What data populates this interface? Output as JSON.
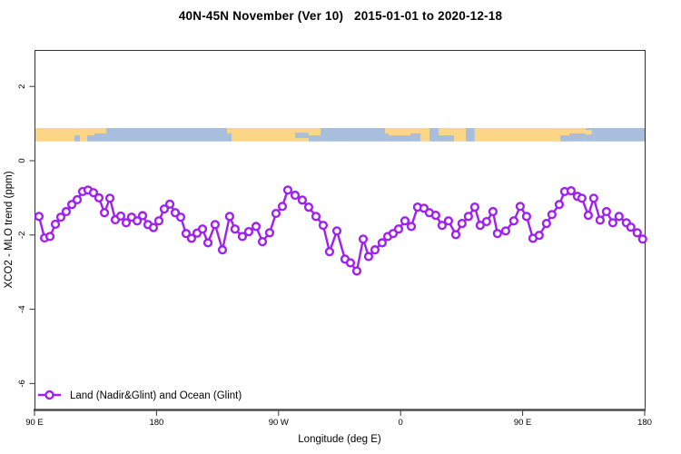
{
  "title": "40N-45N November (Ver 10)   2015-01-01 to 2020-12-18",
  "colors": {
    "series_purple": "#A020F0",
    "land_yellow": "#FBD687",
    "ocean_blue": "#A7BEDC",
    "box_border": "#333333",
    "axis_line": "#4d4d4d",
    "text": "#000000"
  },
  "chart_data": {
    "type": "line",
    "title": "40N-45N November (Ver 10)   2015-01-01 to 2020-12-18",
    "xlabel": "Longitude (deg E)",
    "ylabel": "XCO2 - MLO trend (ppm)",
    "xlim": [
      90,
      540.7
    ],
    "ylim": [
      -6.7,
      3.0
    ],
    "grid": false,
    "x_ticks": {
      "lons": [
        90,
        180,
        270,
        360,
        450,
        540
      ],
      "labels": [
        "90 E",
        "180",
        "90 W",
        "0",
        "90 E",
        "180"
      ]
    },
    "y_ticks": {
      "values": [
        2,
        0,
        -2,
        -4,
        -6
      ],
      "labels": [
        "2",
        "0",
        "-2",
        "-4",
        "-6"
      ]
    },
    "legend": {
      "position": "bottom-left",
      "entries": [
        {
          "label": "Land (Nadir&Glint) and Ocean (Glint)",
          "color": "#A020F0",
          "marker": "open-circle"
        }
      ]
    },
    "series": [
      {
        "name": "Land (Nadir&Glint) and Ocean (Glint)",
        "color": "#A020F0",
        "marker": "open-circle",
        "x": [
          93.3,
          97.4,
          101.4,
          105.4,
          109.4,
          113.4,
          117.5,
          121.5,
          125.5,
          129.5,
          133.5,
          137.5,
          141.6,
          145.6,
          149.6,
          153.6,
          157.6,
          161.6,
          165.7,
          169.7,
          173.7,
          177.7,
          181.7,
          185.7,
          189.8,
          193.8,
          197.8,
          201.8,
          205.8,
          209.9,
          213.9,
          217.9,
          223.2,
          228.6,
          233.9,
          237.9,
          243.3,
          248.0,
          253.4,
          258.1,
          263.4,
          268.1,
          272.8,
          276.8,
          282.2,
          287.5,
          292.2,
          297.6,
          302.9,
          307.6,
          313.0,
          319.0,
          323.0,
          327.7,
          332.4,
          336.4,
          341.1,
          346.4,
          350.5,
          354.5,
          358.5,
          363.2,
          367.9,
          372.5,
          377.2,
          381.2,
          385.9,
          390.6,
          395.3,
          400.7,
          405.3,
          410.0,
          414.7,
          418.7,
          423.4,
          428.1,
          431.4,
          437.5,
          443.5,
          448.2,
          452.9,
          457.6,
          462.2,
          467.6,
          471.6,
          477.0,
          481.0,
          485.7,
          490.4,
          493.7,
          498.4,
          502.4,
          507.1,
          511.8,
          516.5,
          521.1,
          526.5,
          529.8,
          534.5,
          538.5
        ],
        "y": [
          -1.5,
          -2.08,
          -2.04,
          -1.71,
          -1.52,
          -1.37,
          -1.18,
          -1.05,
          -0.83,
          -0.79,
          -0.86,
          -1.0,
          -1.4,
          -1.01,
          -1.59,
          -1.49,
          -1.67,
          -1.52,
          -1.62,
          -1.48,
          -1.72,
          -1.8,
          -1.62,
          -1.3,
          -1.17,
          -1.4,
          -1.52,
          -1.96,
          -2.09,
          -1.95,
          -1.84,
          -2.21,
          -1.72,
          -2.4,
          -1.5,
          -1.84,
          -2.04,
          -1.91,
          -1.77,
          -2.18,
          -1.94,
          -1.42,
          -1.23,
          -0.79,
          -0.93,
          -1.06,
          -1.25,
          -1.5,
          -1.74,
          -2.45,
          -1.89,
          -2.65,
          -2.75,
          -2.97,
          -2.11,
          -2.58,
          -2.4,
          -2.21,
          -2.04,
          -1.96,
          -1.84,
          -1.62,
          -1.77,
          -1.25,
          -1.28,
          -1.4,
          -1.47,
          -1.74,
          -1.62,
          -1.99,
          -1.69,
          -1.5,
          -1.25,
          -1.74,
          -1.64,
          -1.37,
          -1.96,
          -1.89,
          -1.62,
          -1.23,
          -1.5,
          -2.09,
          -2.01,
          -1.69,
          -1.45,
          -1.18,
          -0.83,
          -0.81,
          -0.96,
          -1.01,
          -1.47,
          -1.01,
          -1.6,
          -1.37,
          -1.67,
          -1.5,
          -1.67,
          -1.79,
          -1.94,
          -2.11
        ]
      }
    ],
    "land_ocean_band": {
      "description": "land/ocean map strip along the 40N-45N latitude band",
      "y_range": [
        0.52,
        0.88
      ],
      "land_color": "#FBD687",
      "ocean_color": "#A7BEDC",
      "segments": [
        [
          90.0,
          119.5,
          "land"
        ],
        [
          119.5,
          123.5,
          "coast"
        ],
        [
          123.5,
          128.8,
          "land"
        ],
        [
          128.8,
          134.2,
          "coast"
        ],
        [
          134.2,
          142.9,
          "coast2"
        ],
        [
          142.9,
          232.0,
          "ocean"
        ],
        [
          232.0,
          235.3,
          "coast2"
        ],
        [
          235.3,
          282.2,
          "land"
        ],
        [
          282.2,
          292.2,
          "lakes"
        ],
        [
          292.2,
          300.9,
          "coast"
        ],
        [
          300.9,
          348.5,
          "ocean"
        ],
        [
          348.5,
          351.2,
          "coast2"
        ],
        [
          351.2,
          367.2,
          "coast"
        ],
        [
          367.2,
          374.6,
          "coast2"
        ],
        [
          374.6,
          381.3,
          "land"
        ],
        [
          381.3,
          388.0,
          "ocean"
        ],
        [
          388.0,
          399.4,
          "coast"
        ],
        [
          399.4,
          408.1,
          "land"
        ],
        [
          408.1,
          414.7,
          "ocean"
        ],
        [
          414.7,
          477.7,
          "land"
        ],
        [
          477.7,
          484.4,
          "coast"
        ],
        [
          484.4,
          496.4,
          "coast2"
        ],
        [
          496.4,
          503.1,
          "ocean_island"
        ],
        [
          503.1,
          540.6,
          "ocean"
        ]
      ]
    }
  }
}
